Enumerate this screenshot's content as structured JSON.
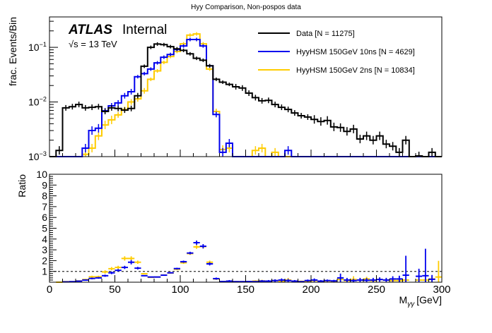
{
  "chart_data": {
    "type": "line",
    "title": "Hyy Comparison, Non-pospos data",
    "style": "step histogram with ratio panel",
    "atlas_label": {
      "experiment": "ATLAS",
      "status": "Internal",
      "energy": "√s = 13 TeV"
    },
    "xlabel": "M_γγ [GeV]",
    "xlabel_main": "M",
    "xlabel_sub": "γγ",
    "xlabel_unit": "[GeV]",
    "xlim": [
      0,
      300
    ],
    "bin_width": 5,
    "x_ticks": [
      0,
      50,
      100,
      150,
      200,
      250,
      300
    ],
    "main_panel": {
      "ylabel": "frac. Events/Bin",
      "yscale": "log",
      "ylim": [
        0.001,
        0.36
      ],
      "y_ticks": [
        {
          "value": 0.001,
          "mantissa": "10",
          "exponent": "−3"
        },
        {
          "value": 0.01,
          "mantissa": "10",
          "exponent": "−2"
        },
        {
          "value": 0.1,
          "mantissa": "10",
          "exponent": "−1"
        }
      ],
      "legend_position": "top-right",
      "series": [
        {
          "name": "Data",
          "legend": "Data [N = 11275]",
          "color": "#000000",
          "values": [
            0,
            0.0013,
            0.0078,
            0.0082,
            0.009,
            0.0078,
            0.008,
            0.0082,
            0.0067,
            0.0078,
            0.0076,
            0.0071,
            0.0076,
            0.013,
            0.045,
            0.1,
            0.115,
            0.112,
            0.103,
            0.094,
            0.088,
            0.076,
            0.063,
            0.058,
            0.046,
            0.026,
            0.023,
            0.021,
            0.019,
            0.018,
            0.0145,
            0.012,
            0.0105,
            0.0107,
            0.009,
            0.008,
            0.0073,
            0.0063,
            0.0056,
            0.0053,
            0.0048,
            0.0044,
            0.0046,
            0.0035,
            0.0034,
            0.0029,
            0.0032,
            0.0021,
            0.0024,
            0.002,
            0.0024,
            0.0017,
            0.00155,
            0.0012,
            0.002,
            0,
            0.00103,
            0,
            0.0012,
            0
          ]
        },
        {
          "name": "HyyHSM 150GeV 10ns",
          "legend": "HyyHSM 150GeV 10ns [N = 4629]",
          "color": "#0000ee",
          "values": [
            0,
            0,
            0,
            0,
            0,
            0.00143,
            0.003,
            0.0033,
            0.0069,
            0.0085,
            0.0096,
            0.013,
            0.0154,
            0.029,
            0.033,
            0.04,
            0.052,
            0.066,
            0.074,
            0.091,
            0.106,
            0.139,
            0.139,
            0.106,
            0.046,
            0.0059,
            0.0012,
            0.00176,
            0,
            0,
            0,
            0,
            0,
            0,
            0,
            0,
            0.0013,
            0,
            0,
            0,
            0,
            0,
            0,
            0,
            0,
            0,
            0,
            0,
            0,
            0,
            0,
            0,
            0,
            0,
            0,
            0,
            0,
            0,
            0,
            0
          ]
        },
        {
          "name": "HyyHSM 150GeV 2ns",
          "legend": "HyyHSM 150GeV 2ns [N = 10834]",
          "color": "#ffcc00",
          "values": [
            0,
            0,
            0,
            0,
            0,
            0.0011,
            0.00143,
            0.0024,
            0.0038,
            0.0047,
            0.0058,
            0.0073,
            0.01,
            0.0114,
            0.016,
            0.026,
            0.037,
            0.053,
            0.068,
            0.084,
            0.116,
            0.167,
            0.176,
            0.116,
            0.04,
            0.0067,
            0.00135,
            0.00143,
            0,
            0,
            0,
            0.0013,
            0.00143,
            0,
            0.0012,
            0,
            0,
            0,
            0,
            0,
            0,
            0,
            0,
            0,
            0,
            0,
            0,
            0,
            0,
            0,
            0,
            0,
            0,
            0,
            0,
            0,
            0,
            0,
            0,
            0
          ]
        }
      ]
    },
    "ratio_panel": {
      "ylabel": "Ratio",
      "ylim": [
        0,
        10
      ],
      "y_ticks": [
        1,
        2,
        3,
        4,
        5,
        6,
        7,
        8,
        9,
        10
      ],
      "reference_line": 1,
      "series": [
        {
          "name": "HyyHSM 150GeV 10ns / Data",
          "color": "#0000ee",
          "values": [
            null,
            null,
            0.03,
            0.05,
            0.1,
            0.2,
            0.35,
            0.4,
            0.6,
            0.87,
            1.1,
            1.37,
            1.85,
            1.3,
            0.6,
            0.48,
            0.48,
            0.65,
            0.87,
            1.26,
            1.9,
            2.7,
            3.66,
            3.33,
            1.7,
            0.33,
            0.06,
            0.1,
            0.05,
            0.05,
            0.06,
            0.05,
            0.1,
            0.1,
            0.15,
            0.2,
            0.15,
            0.1,
            0.05,
            0.15,
            0.2,
            0.1,
            0.15,
            0.12,
            0.4,
            0.2,
            0.15,
            0.2,
            0.18,
            0.2,
            0.25,
            0.2,
            0.3,
            0.3,
            0.65,
            null,
            0.55,
            0.6,
            0.27,
            null
          ],
          "errors": [
            null,
            null,
            0.02,
            0.02,
            0.03,
            0.05,
            0.08,
            0.08,
            0.1,
            0.12,
            0.12,
            0.15,
            0.2,
            0.12,
            0.05,
            0.04,
            0.04,
            0.05,
            0.06,
            0.08,
            0.1,
            0.12,
            0.2,
            0.2,
            0.15,
            0.1,
            0.05,
            0.1,
            0.05,
            0.05,
            0.05,
            0.05,
            0.1,
            0.1,
            0.12,
            0.15,
            0.15,
            0.1,
            0.05,
            0.1,
            0.15,
            0.1,
            0.1,
            0.1,
            0.4,
            0.2,
            0.15,
            0.2,
            0.2,
            0.2,
            0.2,
            0.2,
            0.25,
            0.3,
            1.8,
            null,
            0.7,
            2.5,
            0.4,
            null
          ]
        },
        {
          "name": "HyyHSM 150GeV 2ns / Data",
          "color": "#ffcc00",
          "values": [
            null,
            0,
            0.05,
            0.05,
            0.12,
            0.25,
            0.5,
            0.5,
            0.95,
            1.25,
            1.37,
            2.2,
            2.2,
            1.85,
            0.78,
            0.45,
            0.48,
            0.66,
            0.85,
            1.2,
            1.8,
            2.65,
            3.27,
            3.3,
            1.85,
            0.3,
            0.06,
            0.08,
            0.05,
            0.05,
            0.05,
            0.1,
            0.12,
            0.05,
            0.15,
            0.1,
            0.2,
            0.1,
            0.08,
            0.1,
            0.15,
            0.1,
            0.12,
            0.1,
            0.25,
            0.15,
            0.25,
            0.2,
            0.3,
            0.15,
            0.25,
            0.2,
            0.15,
            0.15,
            0.2,
            null,
            0.2,
            0.2,
            0.3,
            0.48
          ],
          "errors": [
            null,
            0,
            0.02,
            0.02,
            0.03,
            0.06,
            0.1,
            0.1,
            0.15,
            0.15,
            0.15,
            0.2,
            0.2,
            0.15,
            0.06,
            0.04,
            0.04,
            0.05,
            0.06,
            0.08,
            0.1,
            0.12,
            0.18,
            0.18,
            0.15,
            0.08,
            0.05,
            0.06,
            0.05,
            0.05,
            0.05,
            0.08,
            0.1,
            0.05,
            0.1,
            0.08,
            0.2,
            0.08,
            0.06,
            0.08,
            0.1,
            0.08,
            0.1,
            0.08,
            0.2,
            0.12,
            0.3,
            0.15,
            0.2,
            0.12,
            0.15,
            0.15,
            0.12,
            0.12,
            0.15,
            null,
            0.15,
            0.15,
            0.25,
            1.5
          ]
        }
      ]
    }
  }
}
